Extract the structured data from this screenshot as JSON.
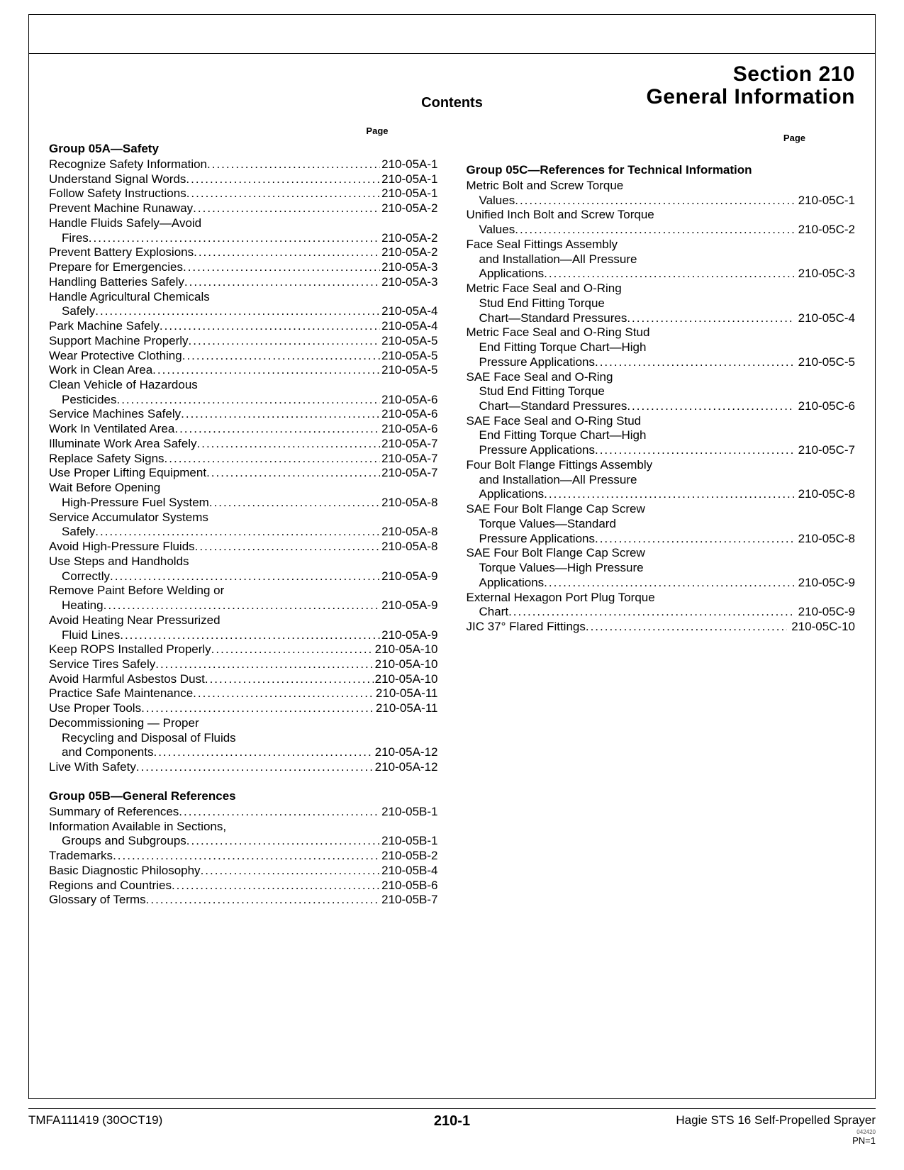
{
  "header": {
    "section_no": "Section 210",
    "section_name": "General Information",
    "contents_label": "Contents",
    "page_label": "Page"
  },
  "groups": [
    {
      "column": 1,
      "title": "Group 05A—Safety",
      "entries": [
        {
          "lines": [
            "Recognize Safety Information"
          ],
          "page": "210-05A-1"
        },
        {
          "lines": [
            "Understand Signal Words"
          ],
          "page": "210-05A-1"
        },
        {
          "lines": [
            "Follow Safety Instructions"
          ],
          "page": "210-05A-1"
        },
        {
          "lines": [
            "Prevent Machine Runaway"
          ],
          "page": "210-05A-2"
        },
        {
          "lines": [
            "Handle Fluids Safely—Avoid",
            "Fires"
          ],
          "page": "210-05A-2"
        },
        {
          "lines": [
            "Prevent Battery Explosions"
          ],
          "page": "210-05A-2"
        },
        {
          "lines": [
            "Prepare for Emergencies"
          ],
          "page": "210-05A-3"
        },
        {
          "lines": [
            "Handling Batteries Safely"
          ],
          "page": "210-05A-3"
        },
        {
          "lines": [
            "Handle Agricultural Chemicals",
            "Safely"
          ],
          "page": "210-05A-4"
        },
        {
          "lines": [
            "Park Machine Safely"
          ],
          "page": "210-05A-4"
        },
        {
          "lines": [
            "Support Machine Properly"
          ],
          "page": "210-05A-5"
        },
        {
          "lines": [
            "Wear Protective Clothing"
          ],
          "page": "210-05A-5"
        },
        {
          "lines": [
            "Work in Clean Area"
          ],
          "page": "210-05A-5"
        },
        {
          "lines": [
            "Clean Vehicle of Hazardous",
            "Pesticides"
          ],
          "page": "210-05A-6"
        },
        {
          "lines": [
            "Service Machines Safely"
          ],
          "page": "210-05A-6"
        },
        {
          "lines": [
            "Work In Ventilated Area"
          ],
          "page": "210-05A-6"
        },
        {
          "lines": [
            "Illuminate Work Area Safely"
          ],
          "page": "210-05A-7"
        },
        {
          "lines": [
            "Replace Safety Signs"
          ],
          "page": "210-05A-7"
        },
        {
          "lines": [
            "Use Proper Lifting Equipment"
          ],
          "page": "210-05A-7"
        },
        {
          "lines": [
            "Wait Before Opening",
            "High-Pressure Fuel System"
          ],
          "page": "210-05A-8"
        },
        {
          "lines": [
            "Service Accumulator Systems",
            "Safely"
          ],
          "page": "210-05A-8"
        },
        {
          "lines": [
            "Avoid High-Pressure Fluids"
          ],
          "page": "210-05A-8"
        },
        {
          "lines": [
            "Use Steps and Handholds",
            "Correctly"
          ],
          "page": "210-05A-9"
        },
        {
          "lines": [
            "Remove Paint Before Welding or",
            "Heating"
          ],
          "page": "210-05A-9"
        },
        {
          "lines": [
            "Avoid Heating Near Pressurized",
            "Fluid Lines"
          ],
          "page": "210-05A-9"
        },
        {
          "lines": [
            "Keep ROPS Installed Properly"
          ],
          "page": "210-05A-10"
        },
        {
          "lines": [
            "Service Tires Safely"
          ],
          "page": "210-05A-10"
        },
        {
          "lines": [
            "Avoid Harmful Asbestos Dust"
          ],
          "page": "210-05A-10"
        },
        {
          "lines": [
            "Practice Safe Maintenance"
          ],
          "page": "210-05A-11"
        },
        {
          "lines": [
            "Use Proper Tools"
          ],
          "page": "210-05A-11"
        },
        {
          "lines": [
            "Decommissioning — Proper",
            "Recycling and Disposal of Fluids",
            "and Components"
          ],
          "page": "210-05A-12"
        },
        {
          "lines": [
            "Live With Safety"
          ],
          "page": "210-05A-12"
        }
      ]
    },
    {
      "column": 1,
      "title": "Group 05B—General References",
      "entries": [
        {
          "lines": [
            "Summary of References"
          ],
          "page": "210-05B-1"
        },
        {
          "lines": [
            "Information Available in Sections,",
            "Groups and Subgroups"
          ],
          "page": "210-05B-1"
        },
        {
          "lines": [
            "Trademarks"
          ],
          "page": "210-05B-2"
        },
        {
          "lines": [
            "Basic Diagnostic Philosophy"
          ],
          "page": "210-05B-4"
        },
        {
          "lines": [
            "Regions and Countries"
          ],
          "page": "210-05B-6"
        },
        {
          "lines": [
            "Glossary of Terms"
          ],
          "page": "210-05B-7"
        }
      ]
    },
    {
      "column": 2,
      "title": "Group 05C—References for Technical Information",
      "entries": [
        {
          "lines": [
            "Metric Bolt and Screw Torque",
            "Values"
          ],
          "page": "210-05C-1"
        },
        {
          "lines": [
            "Unified Inch Bolt and Screw Torque",
            "Values"
          ],
          "page": "210-05C-2"
        },
        {
          "lines": [
            "Face Seal Fittings Assembly",
            "and Installation—All Pressure",
            "Applications"
          ],
          "page": "210-05C-3"
        },
        {
          "lines": [
            "Metric Face Seal and O-Ring",
            "Stud End Fitting Torque",
            "Chart—Standard Pressures"
          ],
          "page": "210-05C-4"
        },
        {
          "lines": [
            "Metric Face Seal and O-Ring Stud",
            "End Fitting Torque Chart—High",
            "Pressure Applications"
          ],
          "page": "210-05C-5"
        },
        {
          "lines": [
            "SAE Face Seal and O-Ring",
            "Stud End Fitting Torque",
            "Chart—Standard Pressures"
          ],
          "page": "210-05C-6"
        },
        {
          "lines": [
            "SAE Face Seal and O-Ring Stud",
            "End Fitting Torque Chart—High",
            "Pressure Applications"
          ],
          "page": "210-05C-7"
        },
        {
          "lines": [
            "Four Bolt Flange Fittings Assembly",
            "and Installation—All Pressure",
            "Applications"
          ],
          "page": "210-05C-8"
        },
        {
          "lines": [
            "SAE Four Bolt Flange Cap Screw",
            "Torque Values—Standard",
            "Pressure Applications"
          ],
          "page": "210-05C-8"
        },
        {
          "lines": [
            "SAE Four Bolt Flange Cap Screw",
            "Torque Values—High Pressure",
            "Applications"
          ],
          "page": "210-05C-9"
        },
        {
          "lines": [
            "External Hexagon Port Plug Torque",
            "Chart"
          ],
          "page": "210-05C-9"
        },
        {
          "lines": [
            "JIC 37° Flared Fittings"
          ],
          "page": "210-05C-10"
        }
      ]
    }
  ],
  "footer": {
    "left": "TMFA111419 (30OCT19)",
    "center": "210-1",
    "right": "Hagie STS 16 Self-Propelled Sprayer",
    "tiny": "042420",
    "pn": "PN=1"
  }
}
